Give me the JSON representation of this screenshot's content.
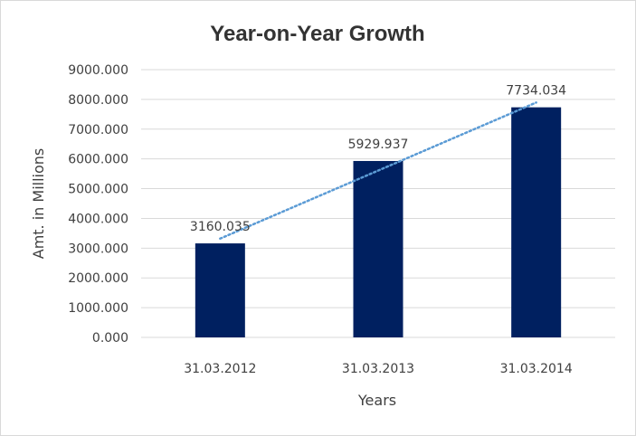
{
  "chart_data": {
    "type": "bar",
    "title": "Year-on-Year Growth",
    "xlabel": "Years",
    "ylabel": "Amt. in Millions",
    "categories": [
      "31.03.2012",
      "31.03.2013",
      "31.03.2014"
    ],
    "values": [
      3160.035,
      5929.937,
      7734.034
    ],
    "value_labels": [
      "3160.035",
      "5929.937",
      "7734.034"
    ],
    "ylim": [
      0,
      9000
    ],
    "yticks": [
      0,
      1000,
      2000,
      3000,
      4000,
      5000,
      6000,
      7000,
      8000,
      9000
    ],
    "ytick_labels": [
      "0.000",
      "1000.000",
      "2000.000",
      "3000.000",
      "4000.000",
      "5000.000",
      "6000.000",
      "7000.000",
      "8000.000",
      "9000.000"
    ],
    "grid": true,
    "legend": "none",
    "trendline": "linear, dotted",
    "colors": {
      "bar": "#002060",
      "trendline": "#5B9BD5",
      "grid": "#d9d9d9"
    }
  }
}
